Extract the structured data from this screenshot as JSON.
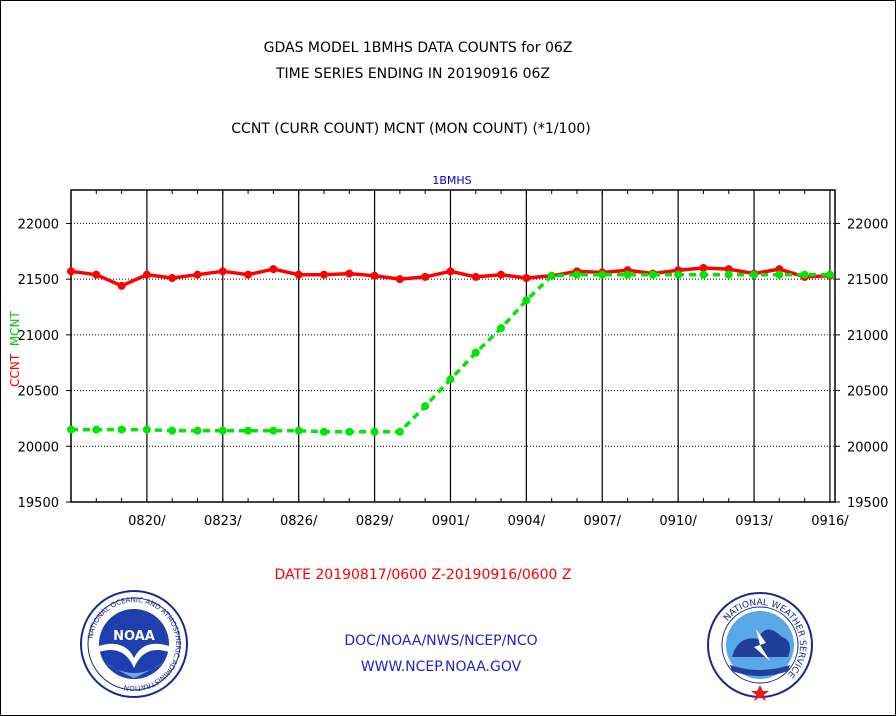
{
  "header": {
    "title_line1": "GDAS MODEL 1BMHS DATA COUNTS for 06Z",
    "title_line2": "TIME SERIES ENDING IN 20190916 06Z",
    "subtitle": "CCNT (CURR COUNT) MCNT (MON COUNT) (*1/100)"
  },
  "footer": {
    "date_range": "DATE 20190817/0600 Z-20190916/0600 Z",
    "org_line": "DOC/NOAA/NWS/NCEP/NCO",
    "url": "WWW.NCEP.NOAA.GOV"
  },
  "logos": {
    "noaa": {
      "text": "NOAA",
      "ring_text": "NATIONAL OCEANIC AND ATMOSPHERIC ADMINISTRATION",
      "bottom_text": "U.S. DEPARTMENT OF COMMERCE"
    },
    "nws": {
      "ring_text": "NATIONAL WEATHER SERVICE"
    }
  },
  "colors": {
    "ccnt": "#ff0000",
    "mcnt": "#00e600",
    "plot_title": "#0000cc",
    "footer_blue": "#2222cc",
    "date_red": "#ff0000"
  },
  "chart_data": {
    "type": "line",
    "title": "1BMHS",
    "ylabel_series": [
      "CCNT",
      "MCNT"
    ],
    "xlabel": "",
    "ylim": [
      19500,
      22300
    ],
    "yticks": [
      19500,
      20000,
      20500,
      21000,
      21500,
      22000
    ],
    "xlim": [
      0,
      30.2
    ],
    "xticks": [
      3,
      6,
      9,
      12,
      15,
      18,
      21,
      24,
      27,
      30
    ],
    "xtick_labels": [
      "0820/",
      "0823/",
      "0826/",
      "0829/",
      "0901/",
      "0904/",
      "0907/",
      "0910/",
      "0913/",
      "0916/"
    ],
    "grid": true,
    "x": [
      0,
      1,
      2,
      3,
      4,
      5,
      6,
      7,
      8,
      9,
      10,
      11,
      12,
      13,
      14,
      15,
      16,
      17,
      18,
      19,
      20,
      21,
      22,
      23,
      24,
      25,
      26,
      27,
      28,
      29,
      30
    ],
    "series": [
      {
        "name": "CCNT",
        "color": "#ff0000",
        "style": "solid",
        "values": [
          21570,
          21540,
          21440,
          21540,
          21510,
          21540,
          21570,
          21540,
          21590,
          21540,
          21540,
          21550,
          21530,
          21500,
          21520,
          21570,
          21520,
          21540,
          21510,
          21530,
          21570,
          21560,
          21580,
          21550,
          21580,
          21600,
          21590,
          21550,
          21590,
          21520,
          21530
        ]
      },
      {
        "name": "MCNT",
        "color": "#00e600",
        "style": "dashed",
        "values": [
          20150,
          20150,
          20150,
          20150,
          20140,
          20140,
          20140,
          20140,
          20140,
          20140,
          20130,
          20130,
          20130,
          20130,
          20360,
          20600,
          20840,
          21060,
          21310,
          21530,
          21540,
          21540,
          21540,
          21540,
          21540,
          21540,
          21540,
          21540,
          21540,
          21540,
          21540
        ]
      }
    ]
  }
}
